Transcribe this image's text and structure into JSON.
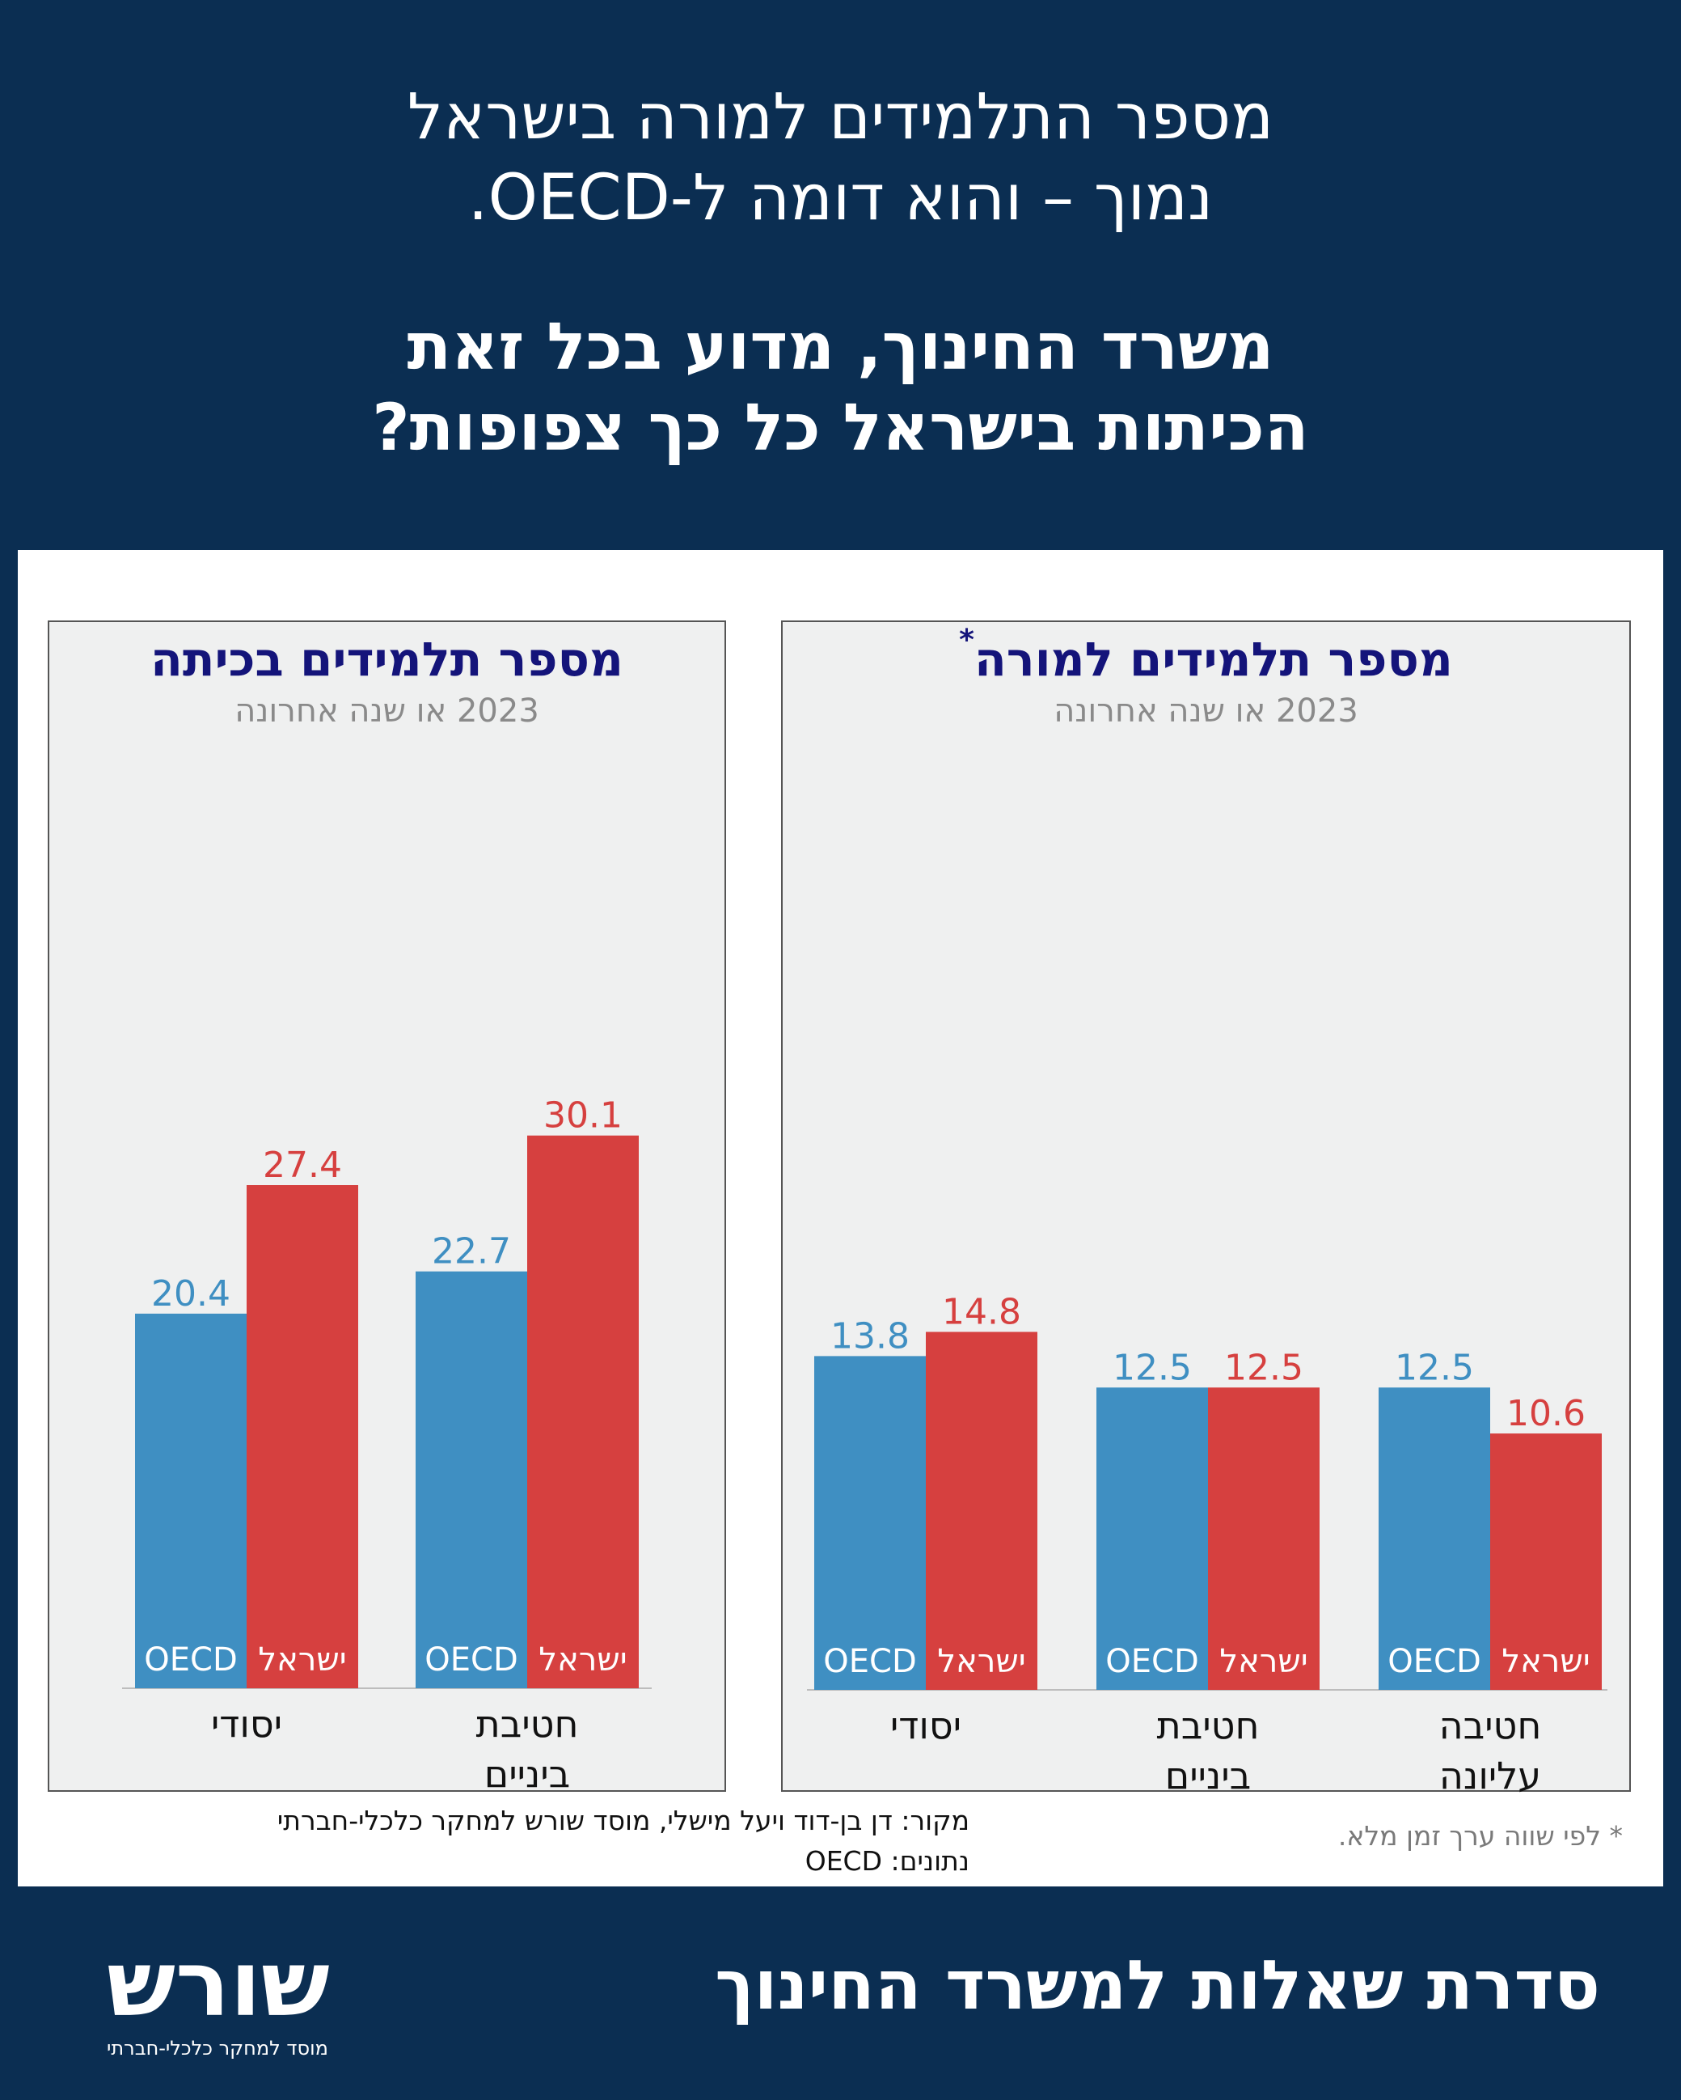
{
  "header": {
    "line1": "מספר התלמידים למורה בישראל",
    "line2": "נמוך – והוא דומה ל-OECD.",
    "line3": "משרד החינוך, מדוע בכל זאת",
    "line4": "הכיתות בישראל כל כך צפופות?"
  },
  "colors": {
    "oecd": "#3f8fc2",
    "israel": "#d6403f",
    "background": "#0b2e52",
    "chart_bg": "#eff0f0",
    "title": "#14147a"
  },
  "chart_data": [
    {
      "type": "bar",
      "title": "מספר תלמידים למורה",
      "title_mark": "*",
      "subtitle": "2023 או שנה אחרונה",
      "categories": [
        "יסודי",
        "חטיבת ביניים",
        "חטיבה עליונה"
      ],
      "series": [
        {
          "name": "OECD",
          "values": [
            13.8,
            12.5,
            12.5
          ]
        },
        {
          "name": "ישראל",
          "values": [
            14.8,
            12.5,
            10.6
          ]
        }
      ]
    },
    {
      "type": "bar",
      "title": "מספר תלמידים בכיתה",
      "subtitle": "2023 או שנה אחרונה",
      "categories": [
        "יסודי",
        "חטיבת ביניים"
      ],
      "series": [
        {
          "name": "OECD",
          "values": [
            20.4,
            22.7
          ]
        },
        {
          "name": "ישראל",
          "values": [
            27.4,
            30.1
          ]
        }
      ]
    }
  ],
  "source": {
    "line1": "מקור:  דן בן-דוד ויעל מישלי, מוסד שורש למחקר כלכלי-חברתי",
    "line2": "נתונים: OECD"
  },
  "footnote": "* לפי שווה ערך זמן מלא.",
  "footer": {
    "series_title": "סדרת שאלות למשרד החינוך",
    "logo_word": "שורש",
    "logo_sub": "מוסד למחקר כלכלי-חברתי"
  }
}
